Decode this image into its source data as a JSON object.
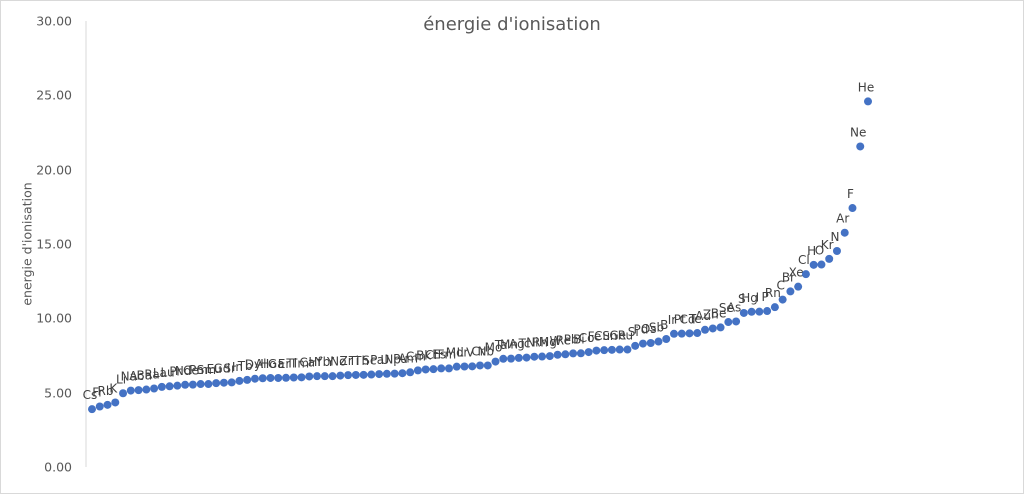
{
  "chart_data": {
    "type": "scatter",
    "title": "énergie d'ionisation",
    "xlabel": "",
    "ylabel": "energie d'ionisation",
    "ylim": [
      0,
      30
    ],
    "yticks": [
      "0.00",
      "5.00",
      "10.00",
      "15.00",
      "20.00",
      "25.00",
      "30.00"
    ],
    "grid": false,
    "legend": null,
    "point_color": "#4472c4",
    "series": [
      {
        "name": "énergie d'ionisation",
        "labels": [
          "Cs",
          "Fr",
          "Rb",
          "K",
          "Li",
          "Na",
          "Ac",
          "Ba",
          "Ra",
          "La",
          "Lu",
          "Pr",
          "Nd",
          "Ce",
          "Pm",
          "Sm",
          "Eu",
          "Gd",
          "Sr",
          "In",
          "Tb",
          "Dy",
          "Al",
          "Ho",
          "Ga",
          "Er",
          "Tl",
          "Tm",
          "Ca",
          "Hf",
          "Yb",
          "Y",
          "No",
          "Zr",
          "Ti",
          "Th",
          "Sc",
          "Pa",
          "U",
          "Np",
          "Pu",
          "Am",
          "Cm",
          "Bk",
          "Cf",
          "Es",
          "Fm",
          "Md",
          "Lr",
          "V",
          "Cr",
          "Nb",
          "Mo",
          "Ta",
          "Mn",
          "Ag",
          "Tc",
          "Ni",
          "Rh",
          "Mg",
          "W",
          "Re",
          "Pb",
          "Bi",
          "Co",
          "Fe",
          "Cu",
          "Sn",
          "Ge",
          "Ru",
          "Si",
          "Pd",
          "Os",
          "Sb",
          "B",
          "Ir",
          "Pt",
          "Cd",
          "Te",
          "Au",
          "Zn",
          "Be",
          "Se",
          "As",
          "S",
          "Hg",
          "I",
          "P",
          "Rn",
          "C",
          "Br",
          "Xe",
          "Cl",
          "H",
          "O",
          "Kr",
          "N",
          "Ar",
          "F",
          "Ne",
          "He"
        ],
        "values": [
          3.89,
          4.07,
          4.18,
          4.34,
          5.39,
          5.14,
          5.17,
          5.21,
          5.28,
          5.58,
          5.43,
          5.47,
          5.53,
          5.54,
          5.58,
          5.64,
          5.67,
          6.15,
          5.69,
          5.79,
          5.86,
          5.94,
          5.99,
          6.02,
          6.0,
          6.11,
          6.11,
          6.18,
          6.11,
          6.83,
          6.25,
          6.22,
          6.63,
          6.63,
          6.83,
          6.31,
          6.56,
          6.09,
          6.19,
          6.27,
          6.03,
          5.97,
          5.99,
          6.2,
          6.28,
          6.37,
          6.5,
          6.58,
          4.96,
          6.75,
          6.77,
          6.76,
          7.09,
          7.55,
          7.43,
          7.58,
          7.28,
          7.64,
          7.46,
          7.65,
          7.86,
          7.83,
          7.42,
          7.29,
          7.88,
          7.9,
          7.73,
          7.34,
          7.9,
          7.36,
          8.15,
          8.34,
          8.44,
          8.61,
          8.3,
          8.97,
          8.96,
          8.99,
          9.01,
          9.23,
          9.39,
          9.32,
          9.75,
          9.79,
          10.36,
          10.44,
          10.45,
          10.49,
          10.75,
          11.26,
          11.81,
          12.13,
          12.97,
          13.6,
          13.62,
          14.0,
          14.53,
          15.76,
          17.42,
          21.56,
          24.59
        ]
      }
    ]
  }
}
